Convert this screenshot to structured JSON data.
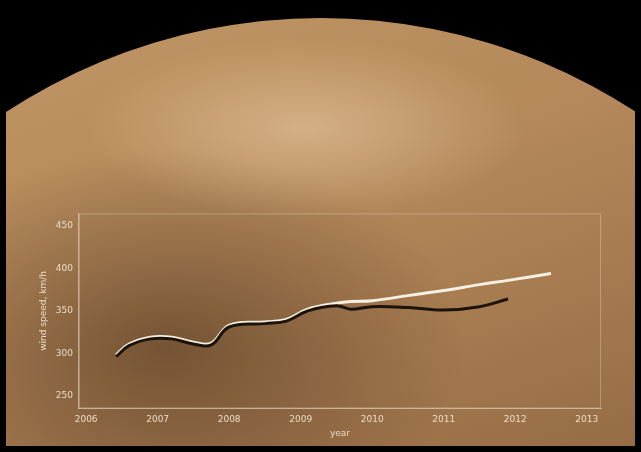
{
  "chart_data": {
    "type": "line",
    "x_label": "year",
    "y_label": "wind speed, km/h",
    "x": [
      2006.42,
      2006.6,
      2006.9,
      2007.2,
      2007.5,
      2007.75,
      2008.0,
      2008.5,
      2008.8,
      2009.1,
      2009.5,
      2009.7,
      2010.0,
      2010.5,
      2011.0,
      2011.5,
      2011.9,
      2012.5
    ],
    "series": [
      {
        "color": "#1c130a",
        "values": [
          296,
          309,
          317,
          317,
          311,
          310,
          331,
          335,
          338,
          350,
          356,
          352,
          355,
          354,
          351,
          355,
          364,
          null
        ]
      },
      {
        "color": "#f6f0e2",
        "values": [
          298,
          311,
          319,
          319,
          313,
          312,
          333,
          337,
          340,
          352,
          359,
          361,
          362,
          368,
          374,
          381,
          386,
          394
        ]
      }
    ],
    "xlim": [
      2005.9,
      2013.2
    ],
    "xticks": [
      2006,
      2007,
      2008,
      2009,
      2010,
      2011,
      2012,
      2013
    ],
    "ylim": [
      235,
      465
    ],
    "yticks": [
      250,
      300,
      350,
      400,
      450
    ],
    "grid": false
  }
}
